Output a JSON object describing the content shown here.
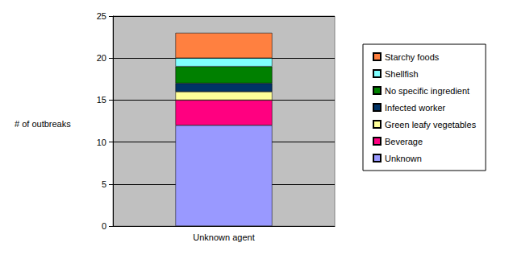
{
  "chart_data": {
    "type": "bar",
    "stacked": true,
    "y_label": "# of outbreaks",
    "categories": [
      "Unknown agent"
    ],
    "series": [
      {
        "name": "Unknown",
        "color": "#9999ff",
        "values": [
          12
        ]
      },
      {
        "name": "Beverage",
        "color": "#ff0080",
        "values": [
          3
        ]
      },
      {
        "name": "Green leafy vegetables",
        "color": "#ffff99",
        "values": [
          1
        ]
      },
      {
        "name": "Infected worker",
        "color": "#003366",
        "values": [
          1
        ]
      },
      {
        "name": "No specific ingredient",
        "color": "#008000",
        "values": [
          2
        ]
      },
      {
        "name": "Shellfish",
        "color": "#80ffff",
        "values": [
          1
        ]
      },
      {
        "name": "Starchy foods",
        "color": "#ff8040",
        "values": [
          3
        ]
      }
    ],
    "ylim": [
      0,
      25
    ],
    "yticks": [
      0,
      5,
      10,
      15,
      20,
      25
    ],
    "grid": true,
    "legend": "right"
  }
}
